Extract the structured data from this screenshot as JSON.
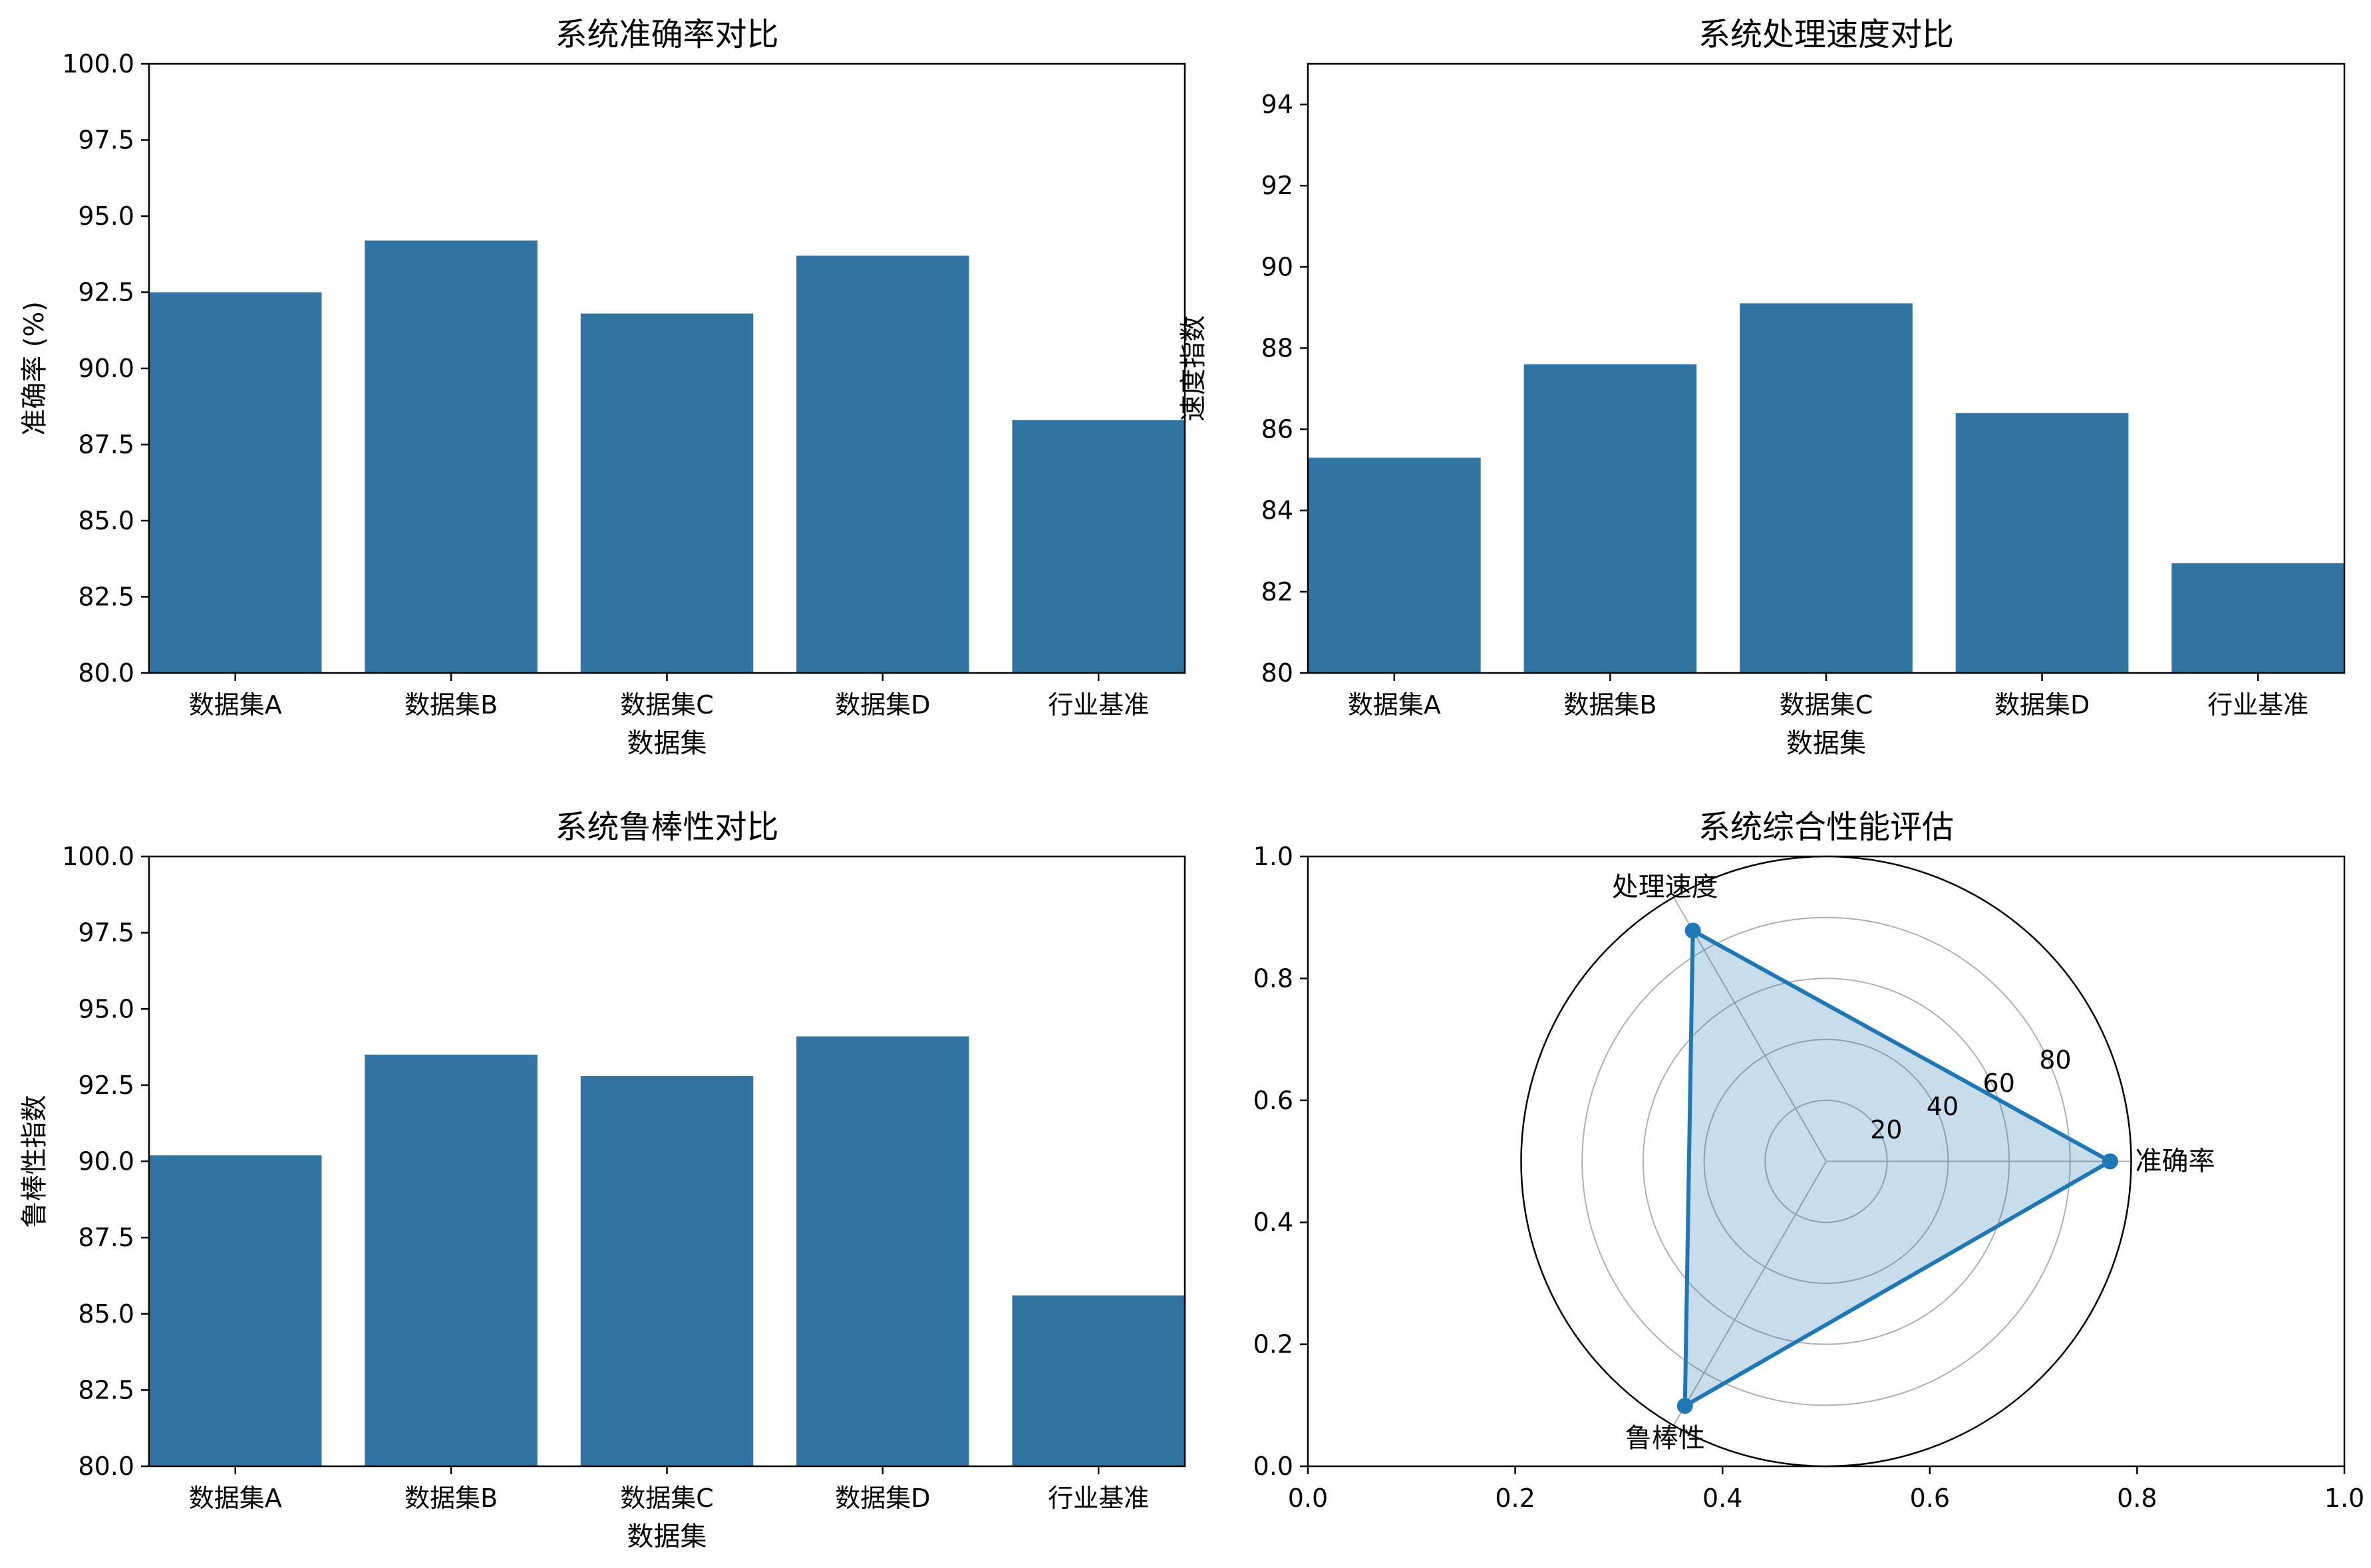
{
  "colors": {
    "bar": "#3274a1",
    "radar_line": "#1f77b4",
    "radar_fill": "rgba(31,119,180,0.25)",
    "grid": "#b0b0b0",
    "axis": "#000000"
  },
  "chart_data": [
    {
      "type": "bar",
      "title": "系统准确率对比",
      "xlabel": "数据集",
      "ylabel": "准确率 (%)",
      "categories": [
        "数据集A",
        "数据集B",
        "数据集C",
        "数据集D",
        "行业基准"
      ],
      "values": [
        92.5,
        94.2,
        91.8,
        93.7,
        88.3
      ],
      "ylim": [
        80,
        100
      ],
      "yticks": [
        "80.0",
        "82.5",
        "85.0",
        "87.5",
        "90.0",
        "92.5",
        "95.0",
        "97.5",
        "100.0"
      ],
      "grid": false
    },
    {
      "type": "bar",
      "title": "系统处理速度对比",
      "xlabel": "数据集",
      "ylabel": "速度指数",
      "categories": [
        "数据集A",
        "数据集B",
        "数据集C",
        "数据集D",
        "行业基准"
      ],
      "values": [
        85.3,
        87.6,
        89.1,
        86.4,
        82.7
      ],
      "ylim": [
        80,
        95
      ],
      "yticks": [
        "80",
        "82",
        "84",
        "86",
        "88",
        "90",
        "92",
        "94"
      ],
      "grid": false
    },
    {
      "type": "bar",
      "title": "系统鲁棒性对比",
      "xlabel": "数据集",
      "ylabel": "鲁棒性指数",
      "categories": [
        "数据集A",
        "数据集B",
        "数据集C",
        "数据集D",
        "行业基准"
      ],
      "values": [
        90.2,
        93.5,
        92.8,
        94.1,
        85.6
      ],
      "ylim": [
        80,
        100
      ],
      "yticks": [
        "80.0",
        "82.5",
        "85.0",
        "87.5",
        "90.0",
        "92.5",
        "95.0",
        "97.5",
        "100.0"
      ],
      "grid": false
    },
    {
      "type": "radar",
      "title": "系统综合性能评估",
      "axes": [
        "准确率",
        "处理速度",
        "鲁棒性"
      ],
      "values": [
        93.1,
        87.4,
        92.6
      ],
      "rlim": [
        0,
        100
      ],
      "rticks": [
        "20",
        "40",
        "60",
        "80"
      ],
      "background_axes": {
        "xlim": [
          0,
          1
        ],
        "ylim": [
          0,
          1
        ],
        "xticks": [
          "0.0",
          "0.2",
          "0.4",
          "0.6",
          "0.8",
          "1.0"
        ],
        "yticks": [
          "0.0",
          "0.2",
          "0.4",
          "0.6",
          "0.8",
          "1.0"
        ]
      },
      "grid": true
    }
  ]
}
